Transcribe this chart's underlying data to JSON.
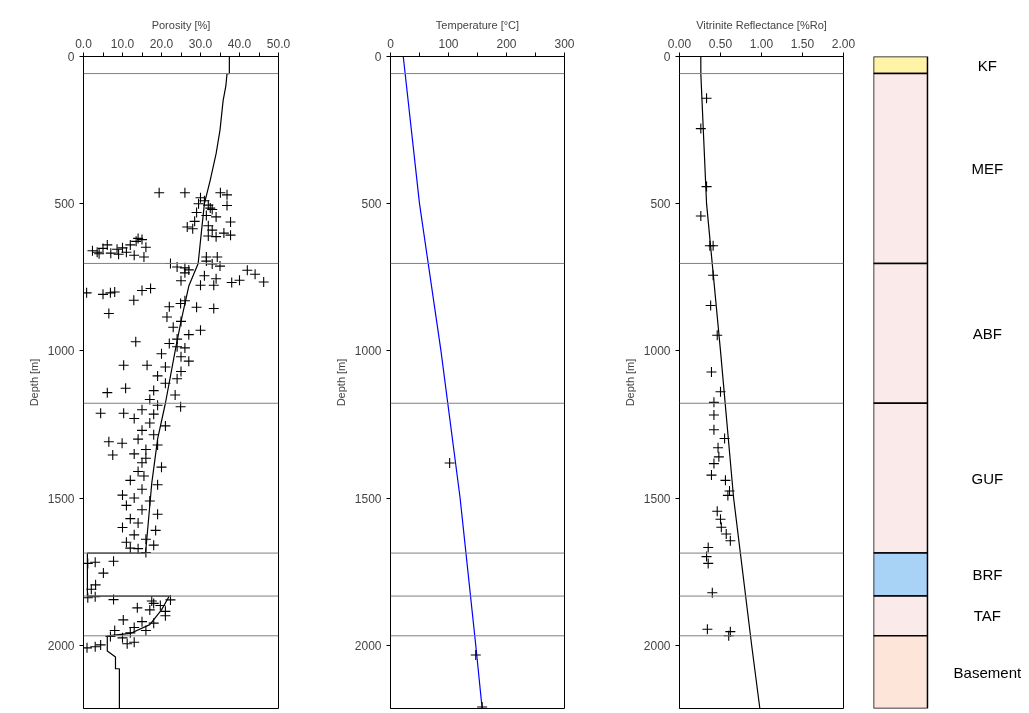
{
  "chart_data": [
    {
      "type": "scatter",
      "xlabel": "Porosity [%]",
      "ylabel": "Depth [m]",
      "xlim": [
        0,
        50
      ],
      "xticks": [
        {
          "value": 0,
          "label": "0.0"
        },
        {
          "value": 5,
          "label": null
        },
        {
          "value": 10,
          "label": "10.0"
        },
        {
          "value": 15,
          "label": null
        },
        {
          "value": 20,
          "label": "20.0"
        },
        {
          "value": 25,
          "label": null
        },
        {
          "value": 30,
          "label": "30.0"
        },
        {
          "value": 35,
          "label": null
        },
        {
          "value": 40,
          "label": "40.0"
        },
        {
          "value": 45,
          "label": null
        },
        {
          "value": 50,
          "label": "50.0"
        }
      ],
      "ylim": [
        2215,
        0
      ],
      "yticks": [
        0,
        500,
        1000,
        1500,
        2000
      ],
      "grid": false,
      "ref_lines": [
        {
          "axis": "y",
          "value": 58,
          "color": "#808080"
        },
        {
          "axis": "y",
          "value": 703,
          "color": "#808080"
        },
        {
          "axis": "y",
          "value": 1178,
          "color": "#808080"
        },
        {
          "axis": "y",
          "value": 1687,
          "color": "#808080"
        },
        {
          "axis": "y",
          "value": 1833,
          "color": "#808080"
        },
        {
          "axis": "y",
          "value": 1968,
          "color": "#808080"
        }
      ],
      "series": [
        {
          "type": "line",
          "marker": "none",
          "color": "#000000",
          "x": [
            37.4,
            37.4,
            36.8,
            36.5,
            35.8,
            35,
            34,
            32.5,
            31,
            30.2,
            29.4,
            27,
            25,
            23.5,
            21,
            19,
            17.5,
            16.5,
            15.9,
            1.0,
            1.0,
            22,
            20,
            17,
            12,
            6.1,
            6.1,
            8.2,
            8.2,
            9.2,
            9.2
          ],
          "values": [
            0,
            58,
            58,
            100,
            150,
            250,
            330,
            420,
            500,
            600,
            703,
            780,
            900,
            1000,
            1178,
            1300,
            1450,
            1600,
            1687,
            1687,
            1833,
            1833,
            1880,
            1930,
            1960,
            1968,
            2020,
            2040,
            2080,
            2080,
            2215
          ]
        },
        {
          "type": "scatter",
          "marker": "cross",
          "color": "#000000",
          "x": [
            19.4,
            26.0,
            35.1,
            36.8,
            30,
            31,
            29.5,
            32,
            36.8,
            32.5,
            33,
            29,
            31.5,
            34,
            37.7,
            28.5,
            32,
            26.6,
            28,
            33,
            36,
            37.7,
            32,
            34,
            14,
            15,
            13.5,
            12,
            16,
            10,
            8.6,
            5,
            2.3,
            3.5,
            6.1,
            7,
            9,
            11,
            13,
            15.5,
            4,
            31.5,
            34.3,
            31.5,
            33,
            35,
            22.3,
            24,
            26,
            27,
            31,
            34,
            42,
            44,
            40,
            46.2,
            38,
            33.4,
            30,
            25,
            26,
            0.8,
            6.9,
            5,
            8,
            15,
            17.2,
            12.9,
            6.5,
            24.9,
            22,
            26,
            33.4,
            29,
            21.4,
            25,
            23,
            30,
            27,
            24,
            13.4,
            22,
            26,
            24,
            20,
            25,
            27,
            21,
            10.3,
            16.3,
            25,
            19,
            24,
            21,
            10.8,
            6.1,
            18,
            23.5,
            17,
            24.9,
            19,
            15,
            4.4,
            10.3,
            18,
            13,
            17,
            21,
            15,
            18,
            6.5,
            9.9,
            14,
            19,
            16,
            7.5,
            13,
            16,
            15,
            20,
            14,
            15.5,
            12,
            19,
            15,
            10,
            13,
            17,
            11,
            15,
            19,
            12,
            14,
            10,
            18.5,
            13,
            16,
            11,
            18,
            14,
            16,
            12,
            1.1,
            3,
            7.7,
            5.1,
            3.1,
            2,
            1.1,
            3,
            7.7,
            22.3,
            17.5,
            18,
            19.7,
            13.8,
            17,
            21,
            21,
            10.2,
            15,
            18,
            13,
            16,
            12,
            8,
            6.9,
            10,
            11.2,
            4.4,
            0.9,
            3,
            13
          ],
          "values": [
            463,
            463,
            463,
            470,
            480,
            490,
            500,
            505,
            506,
            515,
            520,
            530,
            540,
            545,
            562,
            560,
            575,
            579,
            585,
            590,
            600,
            607,
            610,
            612,
            618,
            622,
            628,
            640,
            648,
            650,
            655,
            652,
            660,
            665,
            640,
            668,
            672,
            665,
            675,
            681,
            670,
            681,
            681,
            695,
            705,
            712,
            703,
            715,
            718,
            725,
            745,
            755,
            726,
            740,
            760,
            766,
            768,
            777,
            777,
            762,
            735,
            803,
            803,
            808,
            800,
            795,
            788,
            828,
            873,
            839,
            850,
            830,
            856,
            852,
            885,
            900,
            920,
            930,
            945,
            960,
            969,
            975,
            990,
            986,
            1010,
            1020,
            1035,
            1055,
            1049,
            1049,
            1070,
            1085,
            1095,
            1110,
            1127,
            1142,
            1135,
            1150,
            1165,
            1190,
            1185,
            1200,
            1212,
            1212,
            1215,
            1230,
            1245,
            1255,
            1270,
            1285,
            1309,
            1314,
            1300,
            1320,
            1335,
            1354,
            1350,
            1365,
            1380,
            1395,
            1410,
            1425,
            1440,
            1455,
            1470,
            1490,
            1500,
            1510,
            1525,
            1540,
            1555,
            1570,
            1585,
            1600,
            1610,
            1625,
            1640,
            1650,
            1660,
            1672,
            1685,
            1670,
            1722,
            1718,
            1715,
            1755,
            1795,
            1810,
            1839,
            1835,
            1845,
            1846,
            1850,
            1858,
            1865,
            1873,
            1880,
            1885,
            1900,
            1914,
            1920,
            1925,
            1940,
            1950,
            1958,
            1950,
            1970,
            1975,
            1995,
            1999,
            2009,
            2005,
            1990
          ]
        }
      ]
    },
    {
      "type": "scatter",
      "xlabel": "Temperature [°C]",
      "ylabel": "Depth [m]",
      "xlim": [
        0,
        300
      ],
      "xticks": [
        0,
        {
          "value": 50,
          "label": null
        },
        100,
        {
          "value": 150,
          "label": null
        },
        200,
        {
          "value": 250,
          "label": null
        },
        300
      ],
      "ylim": [
        2215,
        0
      ],
      "yticks": [
        0,
        500,
        1000,
        1500,
        2000
      ],
      "grid": false,
      "ref_lines": [
        {
          "axis": "y",
          "value": 58,
          "color": "#808080"
        },
        {
          "axis": "y",
          "value": 703,
          "color": "#808080"
        },
        {
          "axis": "y",
          "value": 1178,
          "color": "#808080"
        },
        {
          "axis": "y",
          "value": 1687,
          "color": "#808080"
        },
        {
          "axis": "y",
          "value": 1833,
          "color": "#808080"
        },
        {
          "axis": "y",
          "value": 1968,
          "color": "#808080"
        }
      ],
      "series": [
        {
          "type": "line",
          "marker": "none",
          "color": "#0000ff",
          "x": [
            22,
            50,
            87,
            120,
            147,
            158
          ],
          "values": [
            0,
            500,
            1000,
            1500,
            2000,
            2215
          ]
        },
        {
          "type": "scatter",
          "marker": "cross",
          "color": "#000000",
          "x": [
            102,
            147,
            158
          ],
          "values": [
            1381,
            2033,
            2210
          ]
        }
      ]
    },
    {
      "type": "scatter",
      "xlabel": "Vitrinite Reflectance [%Ro]",
      "ylabel": "Depth [m]",
      "xlim": [
        0,
        2
      ],
      "xticks": [
        {
          "value": 0,
          "label": "0.00"
        },
        {
          "value": 0.5,
          "label": "0.50"
        },
        {
          "value": 1,
          "label": "1.00"
        },
        {
          "value": 1.5,
          "label": "1.50"
        },
        {
          "value": 2,
          "label": "2.00"
        }
      ],
      "ylim": [
        2215,
        0
      ],
      "yticks": [
        0,
        500,
        1000,
        1500,
        2000
      ],
      "grid": false,
      "ref_lines": [
        {
          "axis": "y",
          "value": 58,
          "color": "#808080"
        },
        {
          "axis": "y",
          "value": 703,
          "color": "#808080"
        },
        {
          "axis": "y",
          "value": 1178,
          "color": "#808080"
        },
        {
          "axis": "y",
          "value": 1687,
          "color": "#808080"
        },
        {
          "axis": "y",
          "value": 1833,
          "color": "#808080"
        },
        {
          "axis": "y",
          "value": 1968,
          "color": "#808080"
        }
      ],
      "series": [
        {
          "type": "line",
          "marker": "none",
          "color": "#000000",
          "x": [
            0.26,
            0.26,
            0.33,
            0.5,
            0.66,
            0.88,
            0.98
          ],
          "values": [
            0,
            58,
            500,
            1000,
            1500,
            2000,
            2215
          ]
        },
        {
          "type": "scatter",
          "marker": "cross",
          "color": "#000000",
          "x": [
            0.33,
            0.26,
            0.33,
            0.26,
            0.37,
            0.41,
            0.41,
            0.38,
            0.46,
            0.39,
            0.5,
            0.42,
            0.42,
            0.42,
            0.55,
            0.47,
            0.48,
            0.42,
            0.39,
            0.56,
            0.61,
            0.59,
            0.46,
            0.5,
            0.51,
            0.57,
            0.62,
            0.35,
            0.33,
            0.35,
            0.4,
            0.34,
            0.62,
            0.6
          ],
          "values": [
            142,
            245,
            442,
            542,
            643,
            643,
            743,
            846,
            947,
            1072,
            1139,
            1175,
            1218,
            1268,
            1298,
            1329,
            1360,
            1383,
            1422,
            1440,
            1476,
            1491,
            1545,
            1572,
            1599,
            1622,
            1645,
            1668,
            1699,
            1722,
            1822,
            1946,
            1954,
            1968
          ]
        }
      ]
    },
    {
      "type": "bar",
      "stacked": true,
      "categories": [
        null
      ],
      "ylim": [
        2215,
        0
      ],
      "tick_labels": false,
      "series": [
        {
          "name": "KF",
          "color": "#fff3a8",
          "values": [
            58
          ]
        },
        {
          "name": "MEF",
          "color": "#fbeaea",
          "values": [
            645
          ]
        },
        {
          "name": "ABF",
          "color": "#fbeaea",
          "values": [
            475
          ]
        },
        {
          "name": "GUF",
          "color": "#fbeaea",
          "values": [
            509
          ]
        },
        {
          "name": "BRF",
          "color": "#a9d2f7",
          "values": [
            146
          ]
        },
        {
          "name": "TAF",
          "color": "#fbeaea",
          "values": [
            135
          ]
        },
        {
          "name": "Basement",
          "color": "#fde5da",
          "values": [
            247
          ]
        }
      ]
    }
  ]
}
